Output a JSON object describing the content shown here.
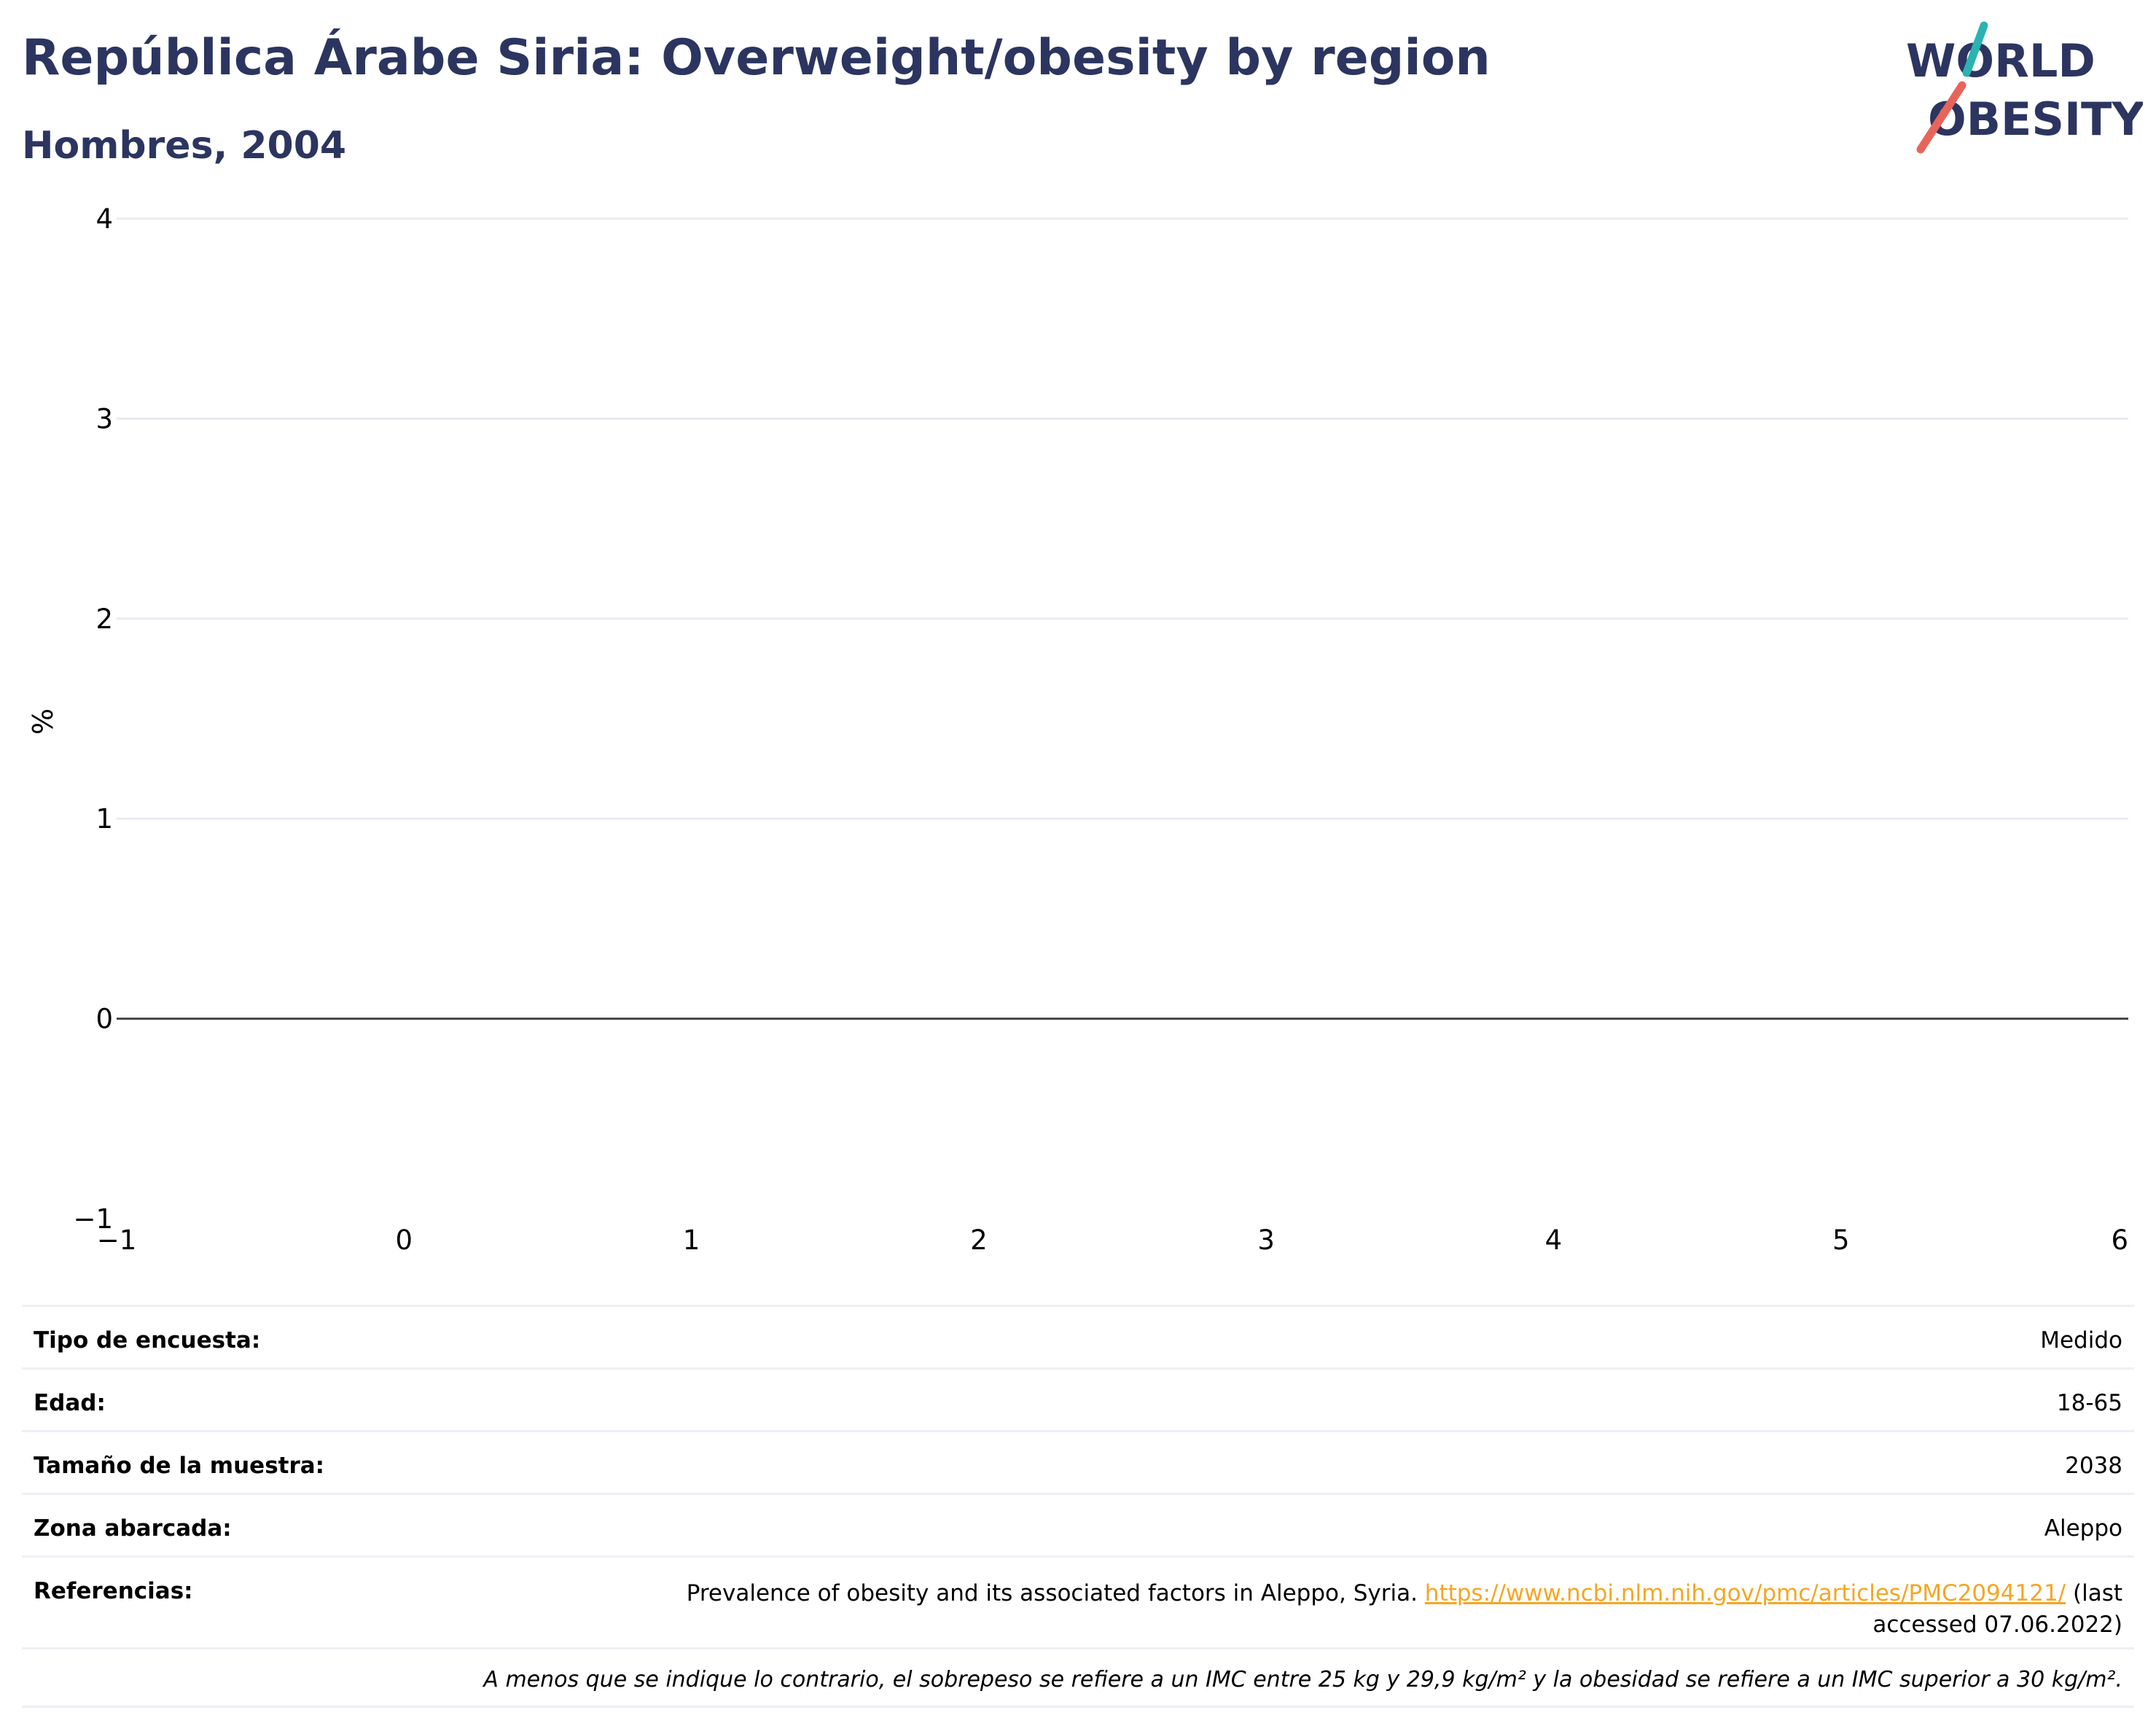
{
  "header": {
    "title": "República Árabe Siria: Overweight/obesity by region",
    "subtitle": "Hombres, 2004"
  },
  "logo": {
    "line1": "WORLD",
    "line2": "OBESITY",
    "colors": {
      "text": "#2c3560",
      "slash_top": "#2ab3b1",
      "slash_bottom": "#e8645a"
    }
  },
  "chart_data": {
    "type": "bar",
    "title": "",
    "xlabel": "",
    "ylabel": "%",
    "categories": [],
    "series": [],
    "xlim": [
      -1,
      6
    ],
    "ylim": [
      -1,
      4
    ],
    "x_ticks": [
      "−1",
      "0",
      "1",
      "2",
      "3",
      "4",
      "5",
      "6"
    ],
    "y_ticks": [
      "−1",
      "0",
      "1",
      "2",
      "3",
      "4"
    ],
    "grid": true,
    "legend": "none",
    "colors": {
      "grid": "#e8ebf0",
      "zero_line": "#444444"
    }
  },
  "survey_info": {
    "rows": [
      {
        "label": "Tipo de encuesta:",
        "value": "Medido"
      },
      {
        "label": "Edad:",
        "value": "18-65"
      },
      {
        "label": "Tamaño de la muestra:",
        "value": "2038"
      },
      {
        "label": "Zona abarcada:",
        "value": "Aleppo"
      }
    ],
    "references": {
      "label": "Referencias:",
      "text": "Prevalence of obesity and its associated factors in Aleppo, Syria.",
      "link": "https://www.ncbi.nlm.nih.gov/pmc/articles/PMC2094121/",
      "after_link": "(last",
      "line2": "accessed 07.06.2022)"
    },
    "note": "A menos que se indique lo contrario, el sobrepeso se refiere a un IMC entre 25 kg y 29,9 kg/m² y la obesidad se refiere a un IMC superior a 30 kg/m²."
  }
}
